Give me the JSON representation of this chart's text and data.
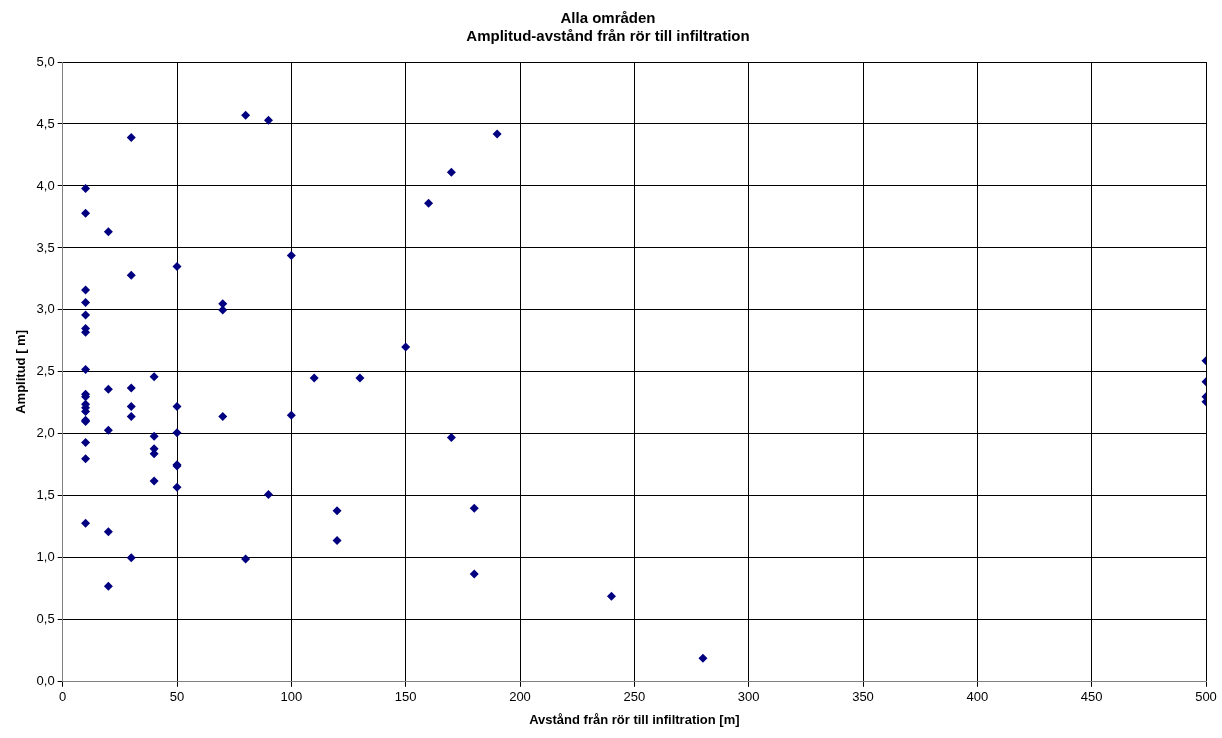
{
  "chart_data": {
    "type": "scatter",
    "title": "Alla områden",
    "subtitle": "Amplitud-avstånd från rör till infiltration",
    "xlabel": "Avstånd från rör till infiltration [m]",
    "ylabel": "Amplitud [ m]",
    "x": [
      10,
      10,
      10,
      10,
      10,
      10,
      10,
      10,
      10,
      10,
      10,
      10,
      10,
      10,
      10,
      10,
      10,
      10,
      20,
      20,
      20,
      20,
      20,
      30,
      30,
      30,
      30,
      30,
      30,
      40,
      40,
      40,
      40,
      40,
      50,
      50,
      50,
      50,
      50,
      50,
      70,
      70,
      70,
      80,
      80,
      90,
      90,
      100,
      100,
      110,
      120,
      120,
      130,
      150,
      160,
      170,
      170,
      180,
      180,
      190,
      240,
      280,
      500,
      500,
      500,
      500
    ],
    "series": [
      {
        "color": "#000080",
        "values": [
          3.98,
          3.78,
          3.16,
          3.06,
          2.96,
          2.85,
          2.82,
          2.52,
          2.32,
          2.3,
          2.24,
          2.21,
          2.18,
          2.11,
          2.1,
          1.93,
          1.8,
          1.28,
          3.63,
          2.36,
          2.03,
          1.21,
          0.77,
          4.39,
          3.28,
          2.37,
          2.22,
          2.14,
          1.0,
          2.46,
          1.98,
          1.88,
          1.84,
          1.62,
          3.35,
          2.22,
          2.01,
          1.75,
          1.74,
          1.57,
          3.05,
          3.0,
          2.14,
          4.57,
          0.99,
          4.53,
          1.51,
          3.44,
          2.15,
          2.45,
          1.38,
          1.14,
          2.45,
          2.7,
          3.86,
          4.11,
          1.97,
          1.4,
          0.87,
          4.42,
          0.69,
          0.19,
          2.59,
          2.42,
          2.3,
          2.26
        ]
      }
    ],
    "xlim": [
      0,
      500
    ],
    "xticks": [
      0,
      50,
      100,
      150,
      200,
      250,
      300,
      350,
      400,
      450,
      500
    ],
    "ylim": [
      0,
      5
    ],
    "yticks": [
      {
        "value": 0,
        "label": "0,0"
      },
      {
        "value": 0.5,
        "label": "0,5"
      },
      {
        "value": 1,
        "label": "1,0"
      },
      {
        "value": 1.5,
        "label": "1,5"
      },
      {
        "value": 2,
        "label": "2,0"
      },
      {
        "value": 2.5,
        "label": "2,5"
      },
      {
        "value": 3,
        "label": "3,0"
      },
      {
        "value": 3.5,
        "label": "3,5"
      },
      {
        "value": 4,
        "label": "4,0"
      },
      {
        "value": 4.5,
        "label": "4,5"
      },
      {
        "value": 5,
        "label": "5,0"
      }
    ],
    "grid": true,
    "marker": "diamond",
    "legend": false
  }
}
